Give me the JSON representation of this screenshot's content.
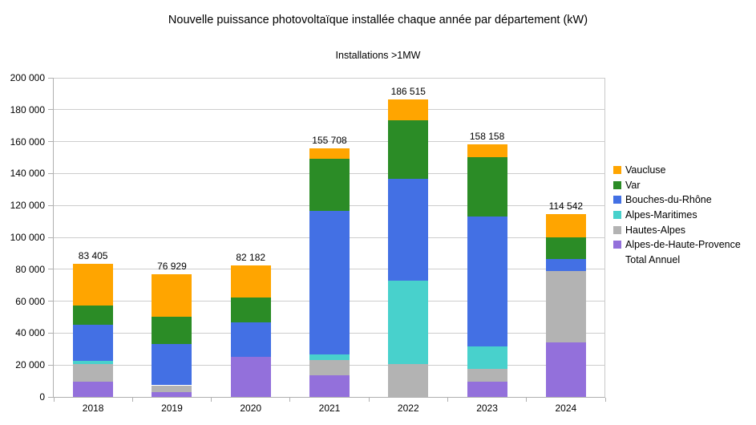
{
  "title": "Nouvelle puissance photovoltaïque installée chaque année par département (kW)",
  "subtitle": "Installations >1MW",
  "chart_data": {
    "type": "bar",
    "stacked": true,
    "title": "Nouvelle puissance photovoltaïque installée chaque année par département (kW)",
    "subtitle": "Installations >1MW",
    "categories": [
      "2018",
      "2019",
      "2020",
      "2021",
      "2022",
      "2023",
      "2024"
    ],
    "series": [
      {
        "name": "Alpes-de-Haute-Provence",
        "color": "#9370DB",
        "values": [
          9800,
          3100,
          25300,
          13500,
          0,
          9800,
          34200
        ]
      },
      {
        "name": "Hautes-Alpes",
        "color": "#B3B3B3",
        "values": [
          11000,
          4200,
          0,
          9800,
          20800,
          7600,
          44500
        ]
      },
      {
        "name": "Alpes-Maritimes",
        "color": "#48D1CC",
        "values": [
          2000,
          0,
          0,
          3300,
          52000,
          14300,
          0
        ]
      },
      {
        "name": "Bouches-du-Rhône",
        "color": "#4370E4",
        "values": [
          22300,
          26100,
          21200,
          89900,
          63800,
          81500,
          7500
        ]
      },
      {
        "name": "Var",
        "color": "#2B8C26",
        "values": [
          12300,
          17100,
          15900,
          32700,
          36900,
          36900,
          13900
        ]
      },
      {
        "name": "Vaucluse",
        "color": "#FFA500",
        "values": [
          26005,
          26429,
          19782,
          6508,
          13015,
          8058,
          14442
        ]
      }
    ],
    "totals": [
      83405,
      76929,
      82182,
      155708,
      186515,
      158158,
      114542
    ],
    "total_labels": [
      "83 405",
      "76 929",
      "82 182",
      "155 708",
      "186 515",
      "158 158",
      "114 542"
    ],
    "ylim": [
      0,
      200000
    ],
    "ytick_step": 20000,
    "ytick_labels": [
      "0",
      "20 000",
      "40 000",
      "60 000",
      "80 000",
      "100 000",
      "120 000",
      "140 000",
      "160 000",
      "180 000",
      "200 000"
    ],
    "grid": true,
    "legend_position": "right",
    "legend": [
      {
        "label": "Vaucluse",
        "color": "#FFA500"
      },
      {
        "label": "Var",
        "color": "#2B8C26"
      },
      {
        "label": "Bouches-du-Rhône",
        "color": "#4370E4"
      },
      {
        "label": "Alpes-Maritimes",
        "color": "#48D1CC"
      },
      {
        "label": "Hautes-Alpes",
        "color": "#B3B3B3"
      },
      {
        "label": "Alpes-de-Haute-Provence",
        "color": "#9370DB"
      },
      {
        "label": "Total Annuel",
        "color": null
      }
    ]
  }
}
